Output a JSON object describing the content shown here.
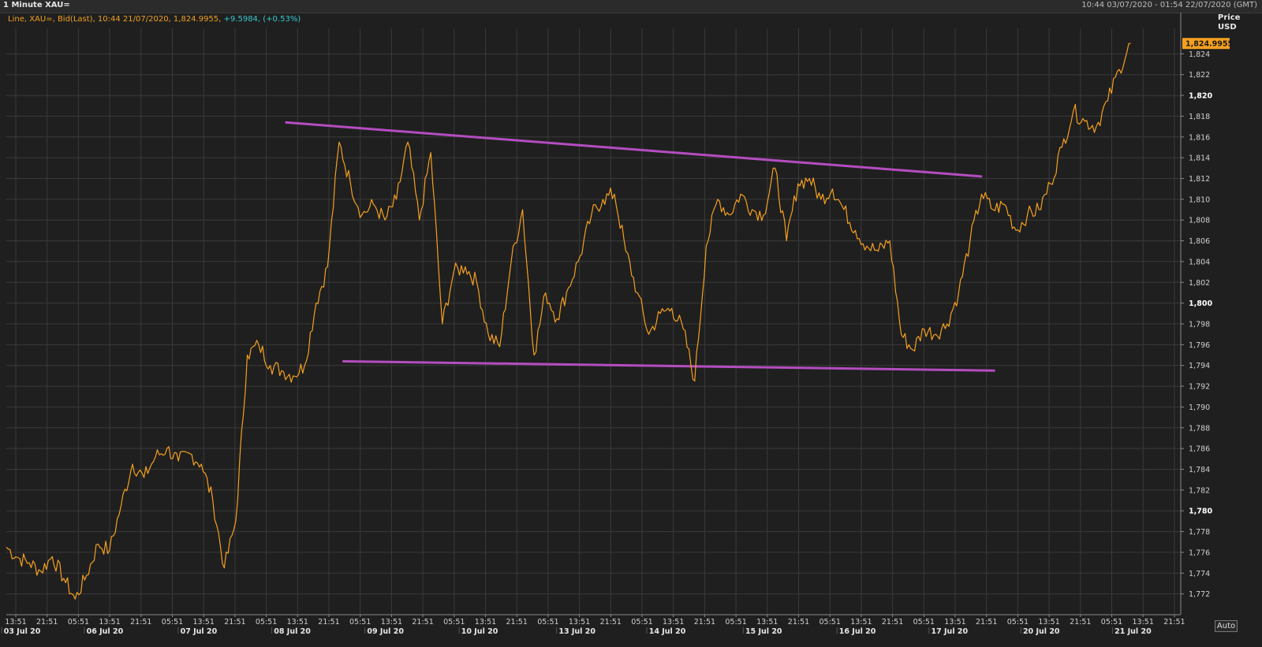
{
  "header": {
    "title": "1 Minute XAU=",
    "range": "10:44 03/07/2020 - 01:54 22/07/2020 (GMT)"
  },
  "legend": {
    "description": "Line, XAU=, Bid(Last), 10:44 21/07/2020, 1,824.9955,",
    "change": "+9.5984, (+0.53%)"
  },
  "axis": {
    "header_line1": "Price",
    "header_line2": "USD",
    "auto_button": "Auto",
    "last_value_label": "1,824.9955"
  },
  "colors": {
    "background": "#1f1f1f",
    "grid": "#3a3a3a",
    "series": "#f5a020",
    "trendline": "#b44dc0",
    "change_text": "#35c9d0"
  },
  "chart_data": {
    "type": "line",
    "ylim": [
      1770,
      1826
    ],
    "y_ticks": [
      {
        "value": 1772,
        "label": "1,772",
        "major": false
      },
      {
        "value": 1774,
        "label": "1,774",
        "major": false
      },
      {
        "value": 1776,
        "label": "1,776",
        "major": false
      },
      {
        "value": 1778,
        "label": "1,778",
        "major": false
      },
      {
        "value": 1780,
        "label": "1,780",
        "major": true
      },
      {
        "value": 1782,
        "label": "1,782",
        "major": false
      },
      {
        "value": 1784,
        "label": "1,784",
        "major": false
      },
      {
        "value": 1786,
        "label": "1,786",
        "major": false
      },
      {
        "value": 1788,
        "label": "1,788",
        "major": false
      },
      {
        "value": 1790,
        "label": "1,790",
        "major": false
      },
      {
        "value": 1792,
        "label": "1,792",
        "major": false
      },
      {
        "value": 1794,
        "label": "1,794",
        "major": false
      },
      {
        "value": 1796,
        "label": "1,796",
        "major": false
      },
      {
        "value": 1798,
        "label": "1,798",
        "major": false
      },
      {
        "value": 1800,
        "label": "1,800",
        "major": true
      },
      {
        "value": 1802,
        "label": "1,802",
        "major": false
      },
      {
        "value": 1804,
        "label": "1,804",
        "major": false
      },
      {
        "value": 1806,
        "label": "1,806",
        "major": false
      },
      {
        "value": 1808,
        "label": "1,808",
        "major": false
      },
      {
        "value": 1810,
        "label": "1,810",
        "major": false
      },
      {
        "value": 1812,
        "label": "1,812",
        "major": false
      },
      {
        "value": 1814,
        "label": "1,814",
        "major": false
      },
      {
        "value": 1816,
        "label": "1,816",
        "major": false
      },
      {
        "value": 1818,
        "label": "1,818",
        "major": false
      },
      {
        "value": 1820,
        "label": "1,820",
        "major": true
      },
      {
        "value": 1822,
        "label": "1,822",
        "major": false
      },
      {
        "value": 1824,
        "label": "1,824",
        "major": false
      }
    ],
    "x_time_labels": [
      "13:51",
      "21:51",
      "05:51",
      "13:51",
      "21:51",
      "05:51",
      "13:51",
      "21:51",
      "05:51",
      "13:51",
      "21:51",
      "05:51",
      "13:51",
      "21:51",
      "05:51",
      "13:51",
      "21:51",
      "05:51",
      "13:51",
      "21:51",
      "05:51",
      "13:51",
      "21:51",
      "05:51",
      "13:51",
      "21:51",
      "05:51",
      "13:51",
      "21:51",
      "05:51",
      "13:51",
      "21:51",
      "05:51",
      "13:51",
      "21:51",
      "05:51",
      "13:51",
      "21:51"
    ],
    "x_date_labels": [
      "03 Jul 20",
      "06 Jul 20",
      "07 Jul 20",
      "08 Jul 20",
      "09 Jul 20",
      "10 Jul 20",
      "13 Jul 20",
      "14 Jul 20",
      "15 Jul 20",
      "16 Jul 20",
      "17 Jul 20",
      "20 Jul 20",
      "21 Jul 20"
    ],
    "series": [
      {
        "values": [
          1776.5,
          1775.5,
          1775.0,
          1774.2,
          1775.6,
          1773.5,
          1771.5,
          1773.8,
          1776.8,
          1776.2,
          1780.5,
          1784.5,
          1783.2,
          1785.2,
          1786.0,
          1784.8,
          1785.5,
          1784.5,
          1781.0,
          1774.5,
          1779.0,
          1795.0,
          1796.0,
          1794.0,
          1793.5,
          1793.0,
          1794.0,
          1800.0,
          1803.5,
          1815.5,
          1811.5,
          1808.5,
          1809.5,
          1808.0,
          1810.0,
          1815.5,
          1808.0,
          1814.5,
          1798.0,
          1803.0,
          1803.5,
          1802.0,
          1797.0,
          1795.8,
          1804.0,
          1809.0,
          1795.0,
          1801.0,
          1798.5,
          1801.5,
          1804.5,
          1808.5,
          1810.0,
          1810.5,
          1805.0,
          1801.0,
          1797.0,
          1799.0,
          1799.5,
          1797.5,
          1792.5,
          1805.5,
          1810.0,
          1808.5,
          1810.5,
          1809.0,
          1808.5,
          1813.0,
          1806.0,
          1811.5,
          1812.0,
          1810.0,
          1811.0,
          1809.0,
          1807.0,
          1805.5,
          1805.0,
          1806.0,
          1797.0,
          1795.5,
          1797.5,
          1797.0,
          1798.0,
          1801.0,
          1806.0,
          1810.5,
          1809.0,
          1809.5,
          1807.0,
          1808.5,
          1809.0,
          1811.5,
          1815.0,
          1818.5,
          1817.5,
          1817.0,
          1819.5,
          1822.5,
          1825.0
        ]
      }
    ],
    "trendlines": [
      {
        "x": [
          0.2383,
          0.83
        ],
        "y": [
          1817.4,
          1812.2
        ]
      },
      {
        "x": [
          0.2871,
          0.841
        ],
        "y": [
          1794.4,
          1793.5
        ]
      }
    ]
  }
}
